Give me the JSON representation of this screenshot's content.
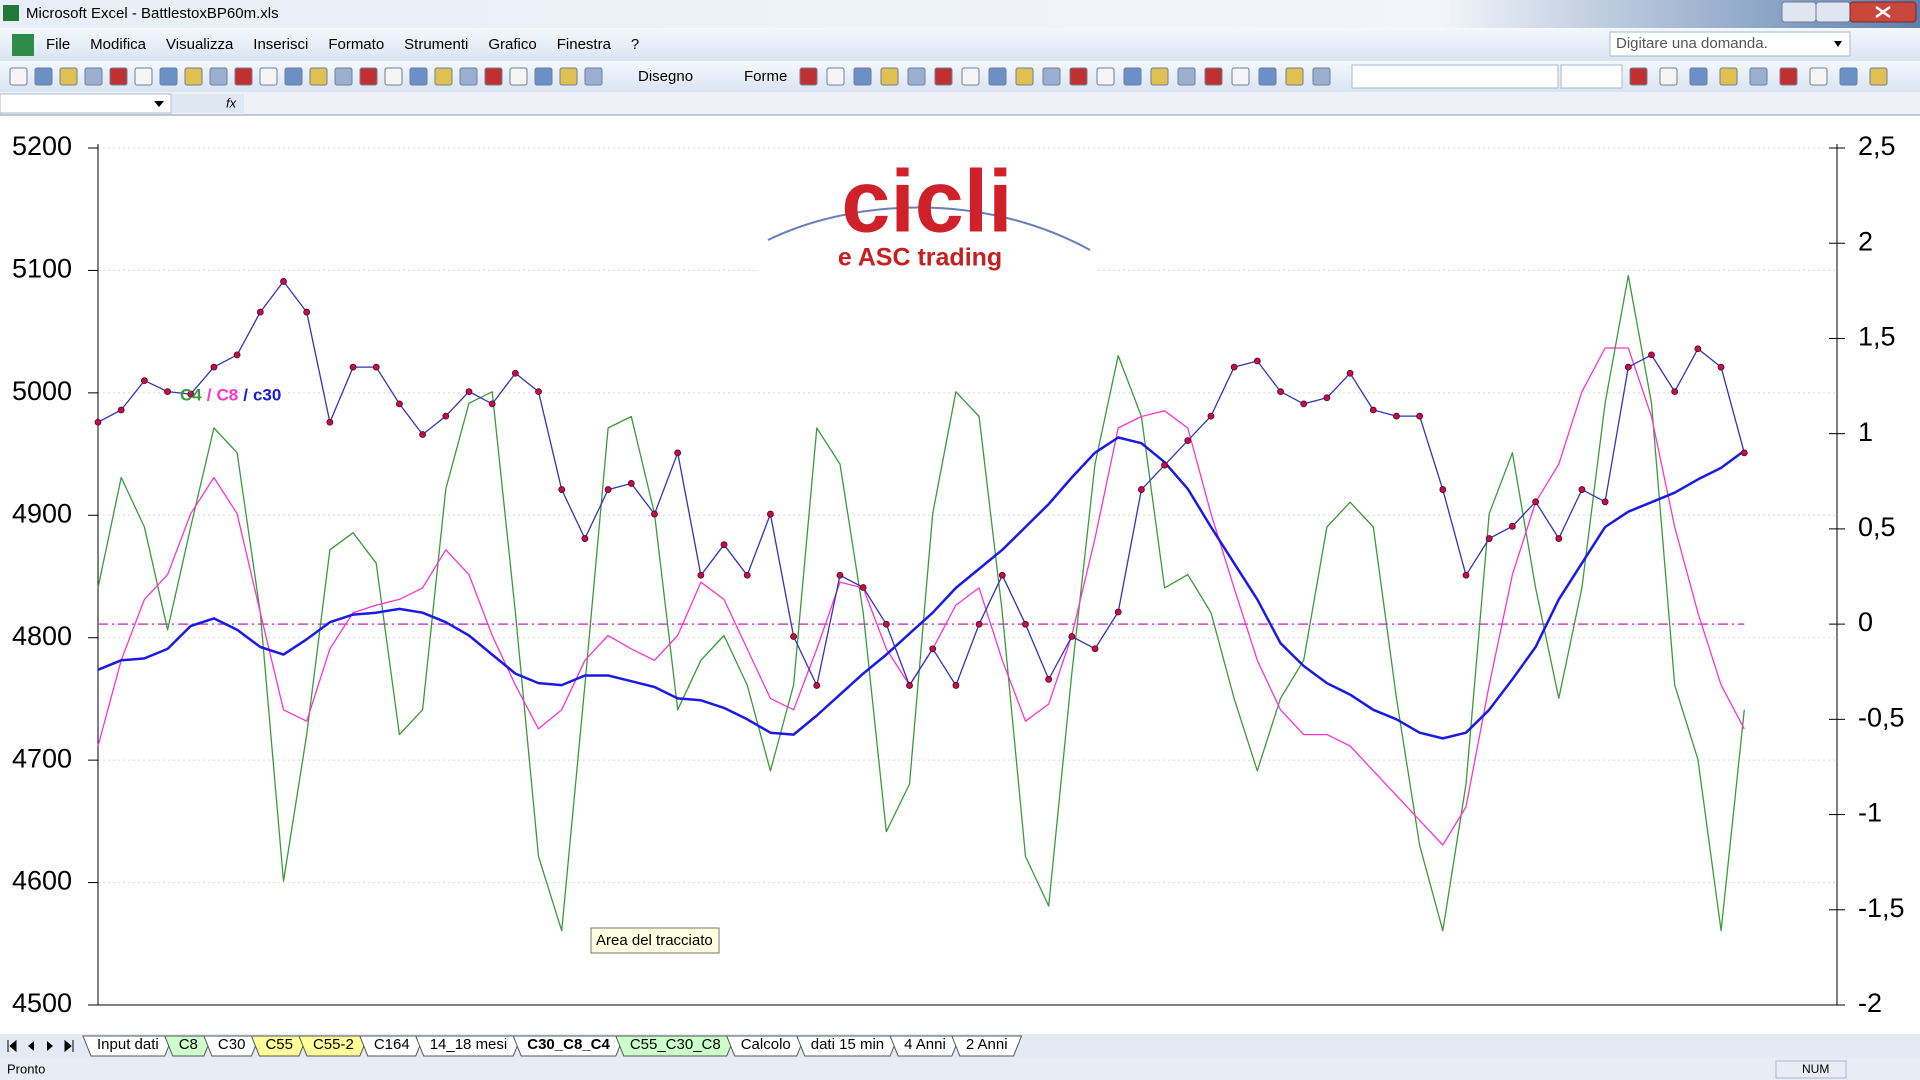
{
  "window": {
    "title": "Microsoft Excel - BattlestoxBP60m.xls"
  },
  "menu": [
    "File",
    "Modifica",
    "Visualizza",
    "Inserisci",
    "Formato",
    "Strumenti",
    "Grafico",
    "Finestra",
    "?"
  ],
  "help_box": "Digitare una domanda.",
  "toolbar": {
    "drawing": "Disegno",
    "shapes": "Forme"
  },
  "formula_bar": {
    "fx": "fx"
  },
  "logo": {
    "title": "cicli",
    "subtitle": "e ASC trading"
  },
  "tooltip": "Area del tracciato",
  "sheet_tabs": [
    {
      "label": "Input dati",
      "color": "#ffffff"
    },
    {
      "label": "C8",
      "color": "#ccffcc"
    },
    {
      "label": "C30",
      "color": "#ffffff"
    },
    {
      "label": "C55",
      "color": "#ffff99"
    },
    {
      "label": "C55-2",
      "color": "#ffff99"
    },
    {
      "label": "C164",
      "color": "#ffffff"
    },
    {
      "label": "14_18 mesi",
      "color": "#ffffff"
    },
    {
      "label": "C30_C8_C4",
      "color": "#ffffff",
      "active": true
    },
    {
      "label": "C55_C30_C8",
      "color": "#ccffcc"
    },
    {
      "label": "Calcolo",
      "color": "#ffffff"
    },
    {
      "label": "dati 15 min",
      "color": "#ffffff"
    },
    {
      "label": "4 Anni",
      "color": "#ffffff"
    },
    {
      "label": "2 Anni",
      "color": "#ffffff"
    }
  ],
  "status_bar": {
    "left": "Pronto",
    "right": "NUM"
  },
  "chart_data": {
    "type": "line",
    "xlim": [
      0,
      75
    ],
    "ylim": [
      4500,
      5200
    ],
    "yticks": [
      4500,
      4600,
      4700,
      4800,
      4900,
      5000,
      5100,
      5200
    ],
    "y2lim": [
      -2,
      2.5
    ],
    "y2ticks": [
      -2,
      {
        "value": -1.5,
        "label": "-1,5"
      },
      -1,
      {
        "value": -0.5,
        "label": "-0,5"
      },
      0,
      {
        "value": 0.5,
        "label": "0,5"
      },
      1,
      {
        "value": 1.5,
        "label": "1,5"
      },
      2,
      {
        "value": 2.5,
        "label": "2,5"
      }
    ],
    "grid": true,
    "reference_line": {
      "value": 0,
      "axis": "y2",
      "color": "#cc44cc"
    },
    "legend_separator": "/",
    "series": [
      {
        "color": "#3333bb",
        "marker_color": "#c0104a",
        "markers": true,
        "values": [
          4976,
          4986,
          5010,
          5001,
          4999,
          5021,
          5031,
          5066,
          5091,
          5066,
          4976,
          5021,
          5021,
          4991,
          4966,
          4981,
          5001,
          4991,
          5016,
          5001,
          4921,
          4881,
          4921,
          4926,
          4901,
          4951,
          4851,
          4876,
          4851,
          4901,
          4801,
          4761,
          4851,
          4841,
          4811,
          4761,
          4791,
          4761,
          4811,
          4851,
          4811,
          4766,
          4801,
          4791,
          4821,
          4921,
          4941,
          4961,
          4981,
          5021,
          5026,
          5001,
          4991,
          4996,
          5016,
          4986,
          4981,
          4981,
          4921,
          4851,
          4881,
          4891,
          4911,
          4881,
          4921,
          4911,
          5021,
          5031,
          5001,
          5036,
          5021,
          4951
        ]
      },
      {
        "name": "C4",
        "color": "#3a9a3a",
        "axis": "y2",
        "values": [
          0.19,
          0.77,
          0.51,
          -0.03,
          0.51,
          1.03,
          0.9,
          0.06,
          -1.35,
          -0.58,
          0.39,
          0.48,
          0.32,
          -0.58,
          -0.45,
          0.71,
          1.16,
          1.22,
          0.06,
          -1.22,
          -1.61,
          -0.32,
          1.03,
          1.09,
          0.58,
          -0.45,
          -0.19,
          -0.06,
          -0.32,
          -0.77,
          -0.32,
          1.03,
          0.84,
          0.06,
          -1.09,
          -0.84,
          0.58,
          1.22,
          1.09,
          0.06,
          -1.22,
          -1.48,
          -0.26,
          0.84,
          1.41,
          1.09,
          0.19,
          0.26,
          0.06,
          -0.39,
          -0.77,
          -0.39,
          -0.19,
          0.51,
          0.64,
          0.51,
          -0.39,
          -1.16,
          -1.61,
          -0.84,
          0.58,
          0.9,
          0.19,
          -0.39,
          0.19,
          1.16,
          1.83,
          1.16,
          -0.32,
          -0.71,
          -1.61,
          -0.45
        ]
      },
      {
        "name": "C8",
        "color": "#ff33cc",
        "axis": "y2",
        "values": [
          -0.64,
          -0.19,
          0.13,
          0.26,
          0.58,
          0.77,
          0.58,
          0.06,
          -0.45,
          -0.51,
          -0.13,
          0.06,
          0.1,
          0.13,
          0.19,
          0.39,
          0.26,
          -0.06,
          -0.32,
          -0.55,
          -0.45,
          -0.19,
          -0.06,
          -0.13,
          -0.19,
          -0.06,
          0.22,
          0.13,
          -0.13,
          -0.39,
          -0.45,
          -0.13,
          0.22,
          0.19,
          -0.13,
          -0.32,
          -0.13,
          0.1,
          0.19,
          -0.19,
          -0.51,
          -0.42,
          -0.06,
          0.45,
          1.03,
          1.09,
          1.12,
          1.03,
          0.58,
          0.19,
          -0.19,
          -0.45,
          -0.58,
          -0.58,
          -0.64,
          -0.77,
          -0.9,
          -1.03,
          -1.16,
          -0.96,
          -0.32,
          0.26,
          0.64,
          0.84,
          1.22,
          1.45,
          1.45,
          1.09,
          0.51,
          0.06,
          -0.32,
          -0.55
        ]
      },
      {
        "name": "c30",
        "color": "#1a1ae6",
        "axis": "y2",
        "values": [
          -0.24,
          -0.19,
          -0.18,
          -0.13,
          -0.01,
          0.03,
          -0.03,
          -0.12,
          -0.16,
          -0.08,
          0.01,
          0.05,
          0.06,
          0.08,
          0.06,
          0.01,
          -0.06,
          -0.16,
          -0.26,
          -0.31,
          -0.32,
          -0.27,
          -0.27,
          -0.3,
          -0.33,
          -0.39,
          -0.4,
          -0.44,
          -0.5,
          -0.57,
          -0.58,
          -0.48,
          -0.37,
          -0.26,
          -0.16,
          -0.05,
          0.06,
          0.19,
          0.29,
          0.39,
          0.51,
          0.63,
          0.77,
          0.9,
          0.98,
          0.95,
          0.85,
          0.71,
          0.51,
          0.32,
          0.13,
          -0.1,
          -0.22,
          -0.31,
          -0.37,
          -0.45,
          -0.5,
          -0.57,
          -0.6,
          -0.57,
          -0.45,
          -0.29,
          -0.12,
          0.13,
          0.32,
          0.51,
          0.59,
          0.64,
          0.69,
          0.76,
          0.82,
          0.91
        ]
      }
    ]
  }
}
